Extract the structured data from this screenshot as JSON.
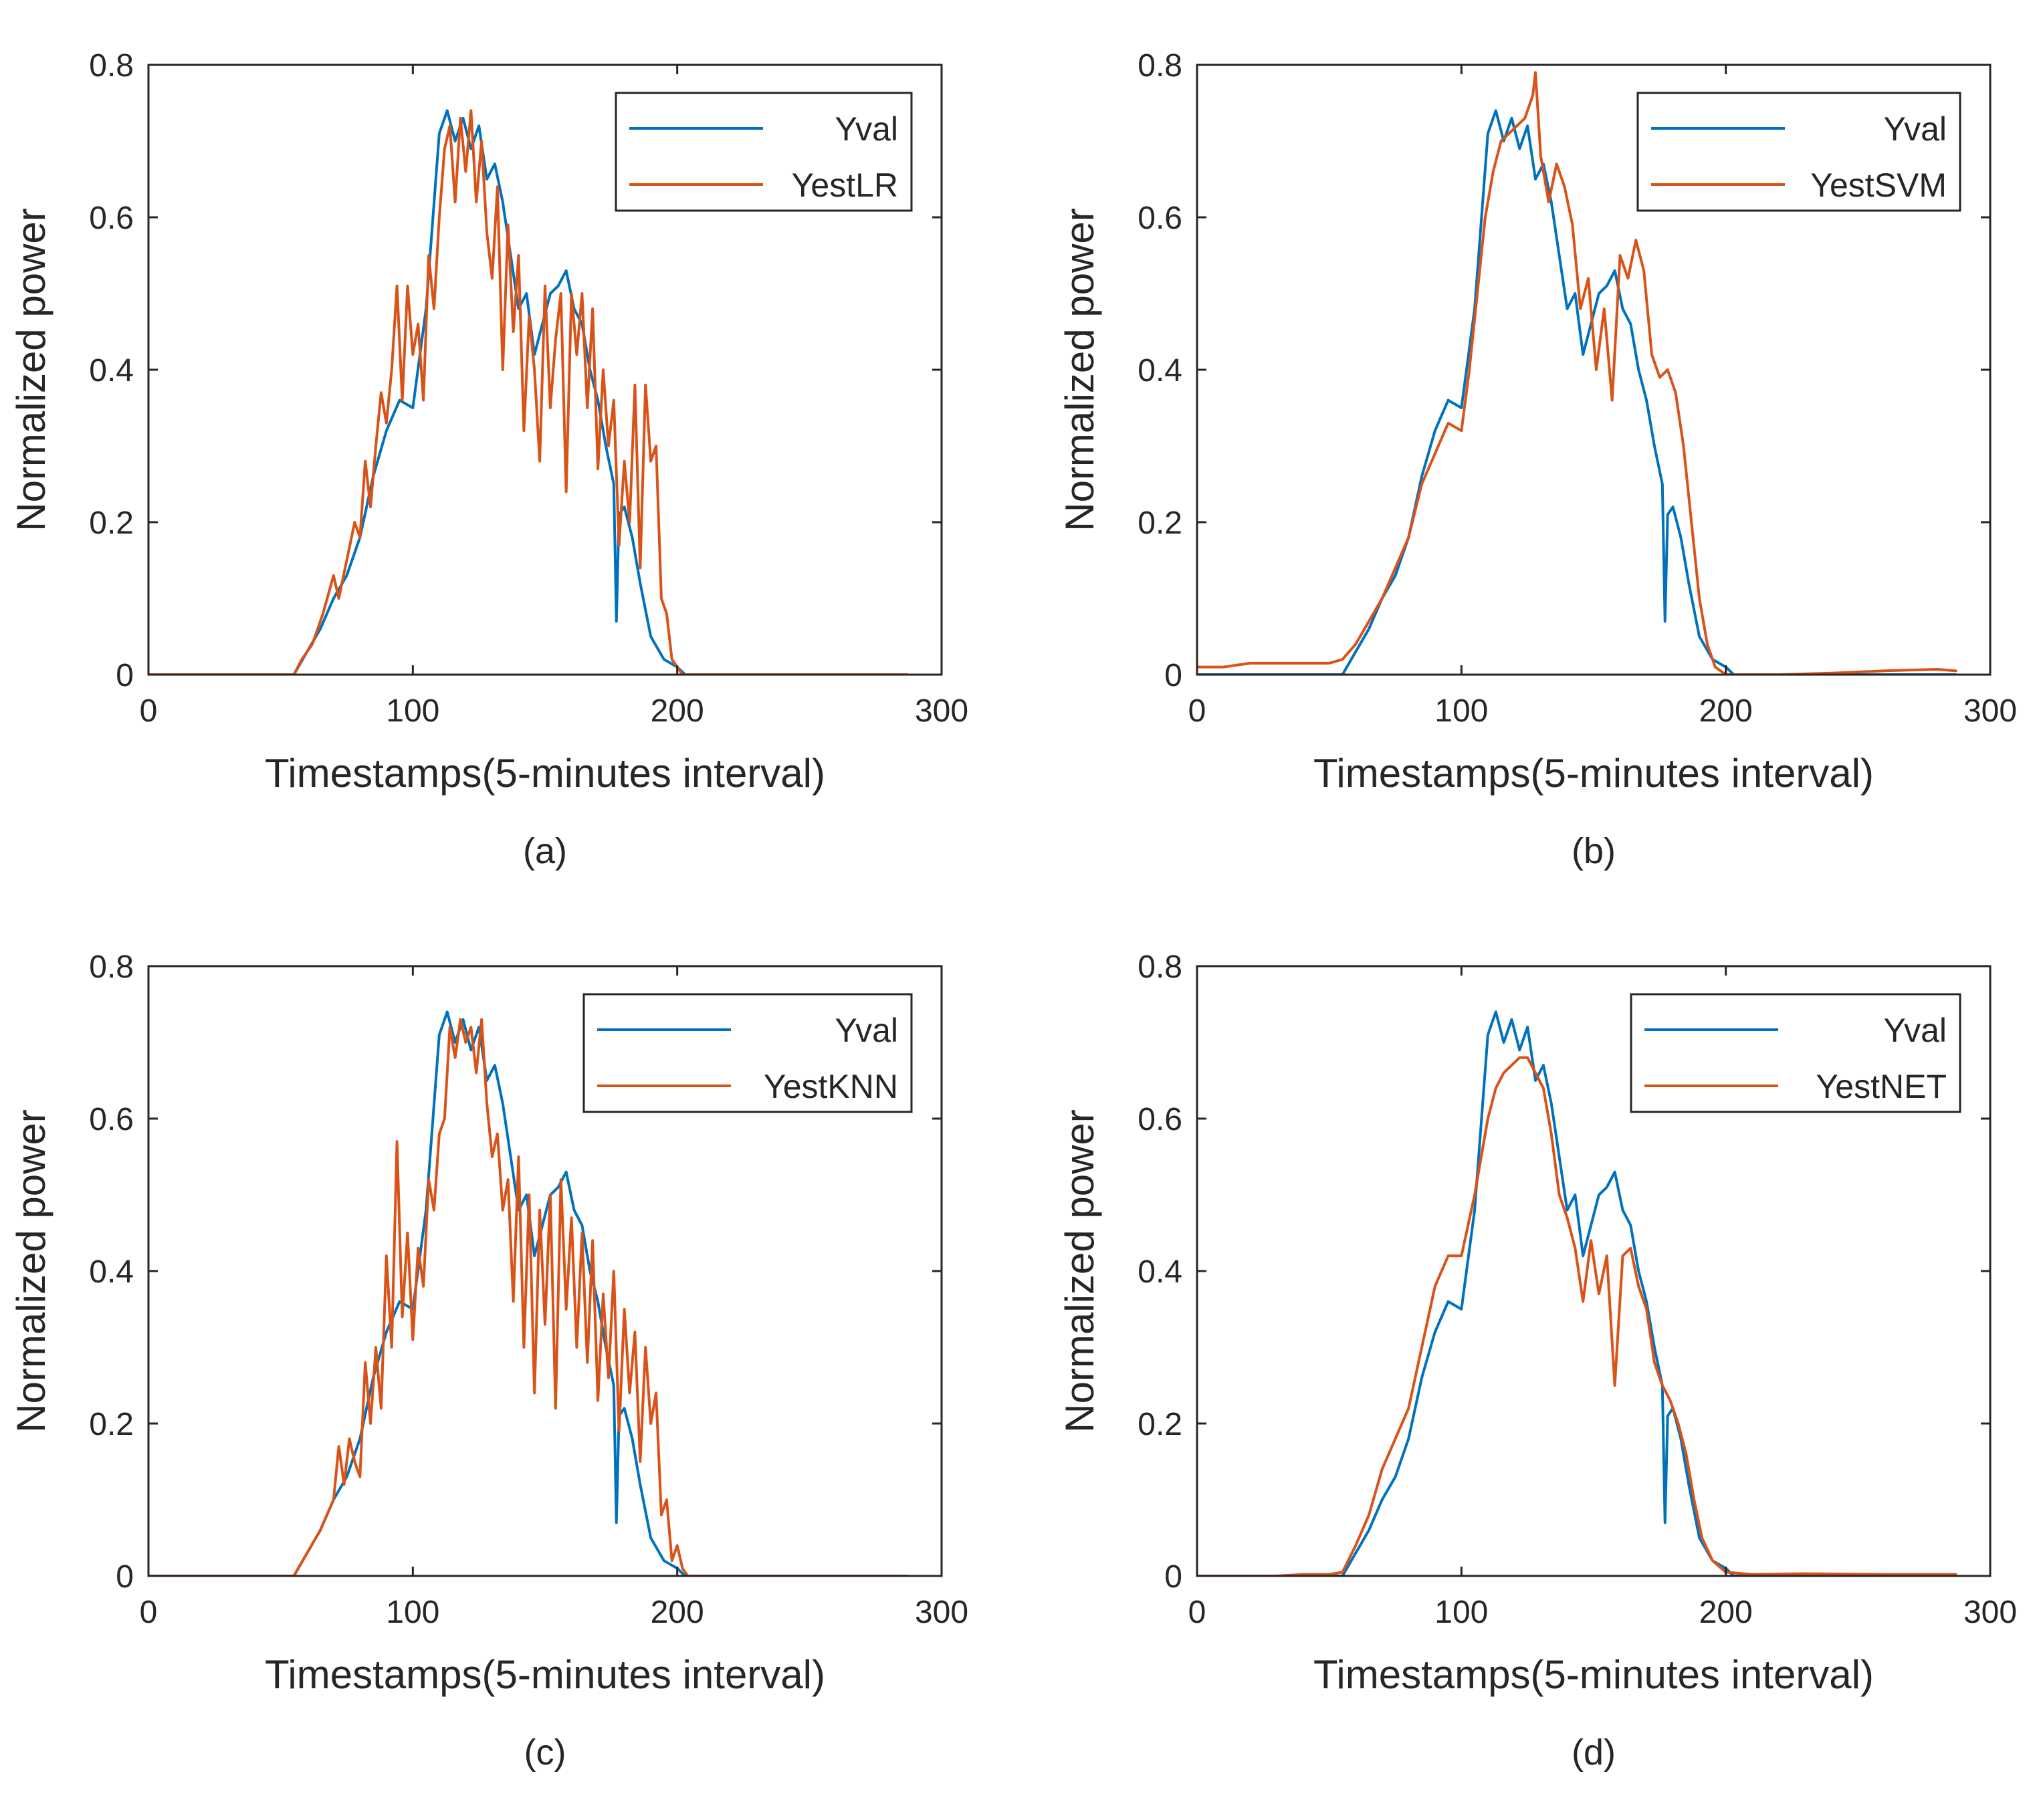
{
  "chart_data": [
    {
      "id": "a",
      "type": "line",
      "caption": "(a)",
      "xlabel": "Timestamps(5-minutes interval)",
      "ylabel": "Normalized power",
      "xlim": [
        0,
        300
      ],
      "ylim": [
        0,
        0.8
      ],
      "xticks": [
        0,
        100,
        200,
        300
      ],
      "yticks": [
        0,
        0.2,
        0.4,
        0.6,
        0.8
      ],
      "grid": false,
      "legend_position": "top-right",
      "series": [
        {
          "name": "Yval",
          "color": "#0072BD",
          "x": [
            0,
            55,
            60,
            65,
            70,
            75,
            80,
            85,
            90,
            95,
            100,
            105,
            110,
            113,
            116,
            119,
            122,
            125,
            128,
            131,
            134,
            137,
            140,
            143,
            146,
            149,
            152,
            155,
            158,
            161,
            164,
            167,
            170,
            173,
            176,
            177,
            178,
            180,
            183,
            186,
            190,
            195,
            200,
            203,
            287
          ],
          "y": [
            0,
            0,
            0.03,
            0.06,
            0.1,
            0.13,
            0.18,
            0.26,
            0.32,
            0.36,
            0.35,
            0.48,
            0.71,
            0.74,
            0.7,
            0.73,
            0.69,
            0.72,
            0.65,
            0.67,
            0.62,
            0.55,
            0.48,
            0.5,
            0.42,
            0.46,
            0.5,
            0.51,
            0.53,
            0.48,
            0.46,
            0.4,
            0.36,
            0.3,
            0.25,
            0.07,
            0.21,
            0.22,
            0.18,
            0.12,
            0.05,
            0.02,
            0.01,
            0,
            0
          ]
        },
        {
          "name": "YestLR",
          "color": "#D95319",
          "x": [
            0,
            55,
            58,
            62,
            66,
            70,
            72,
            75,
            78,
            80,
            82,
            84,
            86,
            88,
            90,
            92,
            94,
            96,
            98,
            100,
            102,
            104,
            106,
            108,
            110,
            112,
            114,
            116,
            118,
            120,
            122,
            124,
            126,
            128,
            130,
            132,
            134,
            136,
            138,
            140,
            142,
            144,
            146,
            148,
            150,
            152,
            154,
            156,
            158,
            160,
            162,
            164,
            166,
            168,
            170,
            172,
            174,
            176,
            178,
            180,
            182,
            184,
            186,
            188,
            190,
            192,
            194,
            196,
            198,
            200,
            202,
            204,
            287
          ],
          "y": [
            0,
            0,
            0.02,
            0.04,
            0.08,
            0.13,
            0.1,
            0.15,
            0.2,
            0.18,
            0.28,
            0.22,
            0.3,
            0.37,
            0.33,
            0.4,
            0.51,
            0.36,
            0.51,
            0.42,
            0.46,
            0.36,
            0.55,
            0.48,
            0.6,
            0.69,
            0.72,
            0.62,
            0.73,
            0.66,
            0.74,
            0.62,
            0.7,
            0.58,
            0.52,
            0.64,
            0.4,
            0.59,
            0.45,
            0.55,
            0.32,
            0.47,
            0.4,
            0.28,
            0.51,
            0.35,
            0.44,
            0.5,
            0.24,
            0.5,
            0.42,
            0.5,
            0.35,
            0.48,
            0.27,
            0.4,
            0.3,
            0.36,
            0.17,
            0.28,
            0.2,
            0.38,
            0.14,
            0.38,
            0.28,
            0.3,
            0.1,
            0.08,
            0.02,
            0.01,
            0,
            0,
            0
          ]
        }
      ]
    },
    {
      "id": "b",
      "type": "line",
      "caption": "(b)",
      "xlabel": "Timestamps(5-minutes interval)",
      "ylabel": "Normalized power",
      "xlim": [
        0,
        300
      ],
      "ylim": [
        0,
        0.8
      ],
      "xticks": [
        0,
        100,
        200,
        300
      ],
      "yticks": [
        0,
        0.2,
        0.4,
        0.6,
        0.8
      ],
      "grid": false,
      "legend_position": "top-right",
      "series": [
        {
          "name": "Yval",
          "color": "#0072BD",
          "x": [
            0,
            55,
            60,
            65,
            70,
            75,
            80,
            85,
            90,
            95,
            100,
            105,
            110,
            113,
            116,
            119,
            122,
            125,
            128,
            131,
            134,
            137,
            140,
            143,
            146,
            149,
            152,
            155,
            158,
            161,
            164,
            167,
            170,
            173,
            176,
            177,
            178,
            180,
            183,
            186,
            190,
            195,
            200,
            203,
            287
          ],
          "y": [
            0,
            0,
            0.03,
            0.06,
            0.1,
            0.13,
            0.18,
            0.26,
            0.32,
            0.36,
            0.35,
            0.48,
            0.71,
            0.74,
            0.7,
            0.73,
            0.69,
            0.72,
            0.65,
            0.67,
            0.62,
            0.55,
            0.48,
            0.5,
            0.42,
            0.46,
            0.5,
            0.51,
            0.53,
            0.48,
            0.46,
            0.4,
            0.36,
            0.3,
            0.25,
            0.07,
            0.21,
            0.22,
            0.18,
            0.12,
            0.05,
            0.02,
            0.01,
            0,
            0
          ]
        },
        {
          "name": "YestSVM",
          "color": "#D95319",
          "x": [
            0,
            5,
            10,
            20,
            30,
            40,
            50,
            55,
            60,
            65,
            70,
            75,
            80,
            85,
            90,
            95,
            100,
            103,
            106,
            109,
            112,
            115,
            118,
            121,
            124,
            127,
            128,
            130,
            133,
            136,
            139,
            142,
            145,
            148,
            151,
            154,
            157,
            160,
            163,
            166,
            169,
            172,
            175,
            178,
            181,
            184,
            187,
            190,
            193,
            196,
            200,
            220,
            240,
            260,
            280,
            287
          ],
          "y": [
            0.01,
            0.01,
            0.01,
            0.015,
            0.015,
            0.015,
            0.015,
            0.02,
            0.04,
            0.07,
            0.1,
            0.14,
            0.18,
            0.25,
            0.29,
            0.33,
            0.32,
            0.4,
            0.5,
            0.6,
            0.66,
            0.7,
            0.71,
            0.72,
            0.73,
            0.76,
            0.79,
            0.68,
            0.62,
            0.67,
            0.64,
            0.59,
            0.48,
            0.52,
            0.4,
            0.48,
            0.36,
            0.55,
            0.52,
            0.57,
            0.53,
            0.42,
            0.39,
            0.4,
            0.37,
            0.3,
            0.2,
            0.1,
            0.04,
            0.01,
            0,
            0,
            0.002,
            0.005,
            0.007,
            0.005
          ]
        }
      ]
    },
    {
      "id": "c",
      "type": "line",
      "caption": "(c)",
      "xlabel": "Timestamps(5-minutes interval)",
      "ylabel": "Normalized power",
      "xlim": [
        0,
        300
      ],
      "ylim": [
        0,
        0.8
      ],
      "xticks": [
        0,
        100,
        200,
        300
      ],
      "yticks": [
        0,
        0.2,
        0.4,
        0.6,
        0.8
      ],
      "grid": false,
      "legend_position": "top-right",
      "series": [
        {
          "name": "Yval",
          "color": "#0072BD",
          "x": [
            0,
            55,
            60,
            65,
            70,
            75,
            80,
            85,
            90,
            95,
            100,
            105,
            110,
            113,
            116,
            119,
            122,
            125,
            128,
            131,
            134,
            137,
            140,
            143,
            146,
            149,
            152,
            155,
            158,
            161,
            164,
            167,
            170,
            173,
            176,
            177,
            178,
            180,
            183,
            186,
            190,
            195,
            200,
            203,
            287
          ],
          "y": [
            0,
            0,
            0.03,
            0.06,
            0.1,
            0.13,
            0.18,
            0.26,
            0.32,
            0.36,
            0.35,
            0.48,
            0.71,
            0.74,
            0.7,
            0.73,
            0.69,
            0.72,
            0.65,
            0.67,
            0.62,
            0.55,
            0.48,
            0.5,
            0.42,
            0.46,
            0.5,
            0.51,
            0.53,
            0.48,
            0.46,
            0.4,
            0.36,
            0.3,
            0.25,
            0.07,
            0.21,
            0.22,
            0.18,
            0.12,
            0.05,
            0.02,
            0.01,
            0,
            0
          ]
        },
        {
          "name": "YestKNN",
          "color": "#D95319",
          "x": [
            0,
            55,
            60,
            65,
            70,
            72,
            74,
            76,
            78,
            80,
            82,
            84,
            86,
            88,
            90,
            92,
            94,
            96,
            98,
            100,
            102,
            104,
            106,
            108,
            110,
            112,
            114,
            116,
            118,
            120,
            122,
            124,
            126,
            128,
            130,
            132,
            134,
            136,
            138,
            140,
            142,
            144,
            146,
            148,
            150,
            152,
            154,
            156,
            158,
            160,
            162,
            164,
            166,
            168,
            170,
            172,
            174,
            176,
            178,
            180,
            182,
            184,
            186,
            188,
            190,
            192,
            194,
            196,
            198,
            200,
            202,
            204,
            287
          ],
          "y": [
            0,
            0,
            0.03,
            0.06,
            0.1,
            0.17,
            0.12,
            0.18,
            0.15,
            0.13,
            0.28,
            0.2,
            0.3,
            0.22,
            0.42,
            0.3,
            0.57,
            0.34,
            0.45,
            0.31,
            0.43,
            0.38,
            0.52,
            0.48,
            0.58,
            0.6,
            0.72,
            0.68,
            0.73,
            0.7,
            0.72,
            0.66,
            0.73,
            0.62,
            0.55,
            0.58,
            0.48,
            0.52,
            0.36,
            0.55,
            0.3,
            0.5,
            0.24,
            0.48,
            0.33,
            0.5,
            0.22,
            0.52,
            0.35,
            0.47,
            0.3,
            0.45,
            0.28,
            0.44,
            0.23,
            0.37,
            0.26,
            0.4,
            0.19,
            0.35,
            0.24,
            0.32,
            0.15,
            0.3,
            0.2,
            0.24,
            0.08,
            0.1,
            0.02,
            0.04,
            0.01,
            0,
            0
          ]
        }
      ]
    },
    {
      "id": "d",
      "type": "line",
      "caption": "(d)",
      "xlabel": "Timestamps(5-minutes interval)",
      "ylabel": "Normalized power",
      "xlim": [
        0,
        300
      ],
      "ylim": [
        0,
        0.8
      ],
      "xticks": [
        0,
        100,
        200,
        300
      ],
      "yticks": [
        0,
        0.2,
        0.4,
        0.6,
        0.8
      ],
      "grid": false,
      "legend_position": "top-right",
      "series": [
        {
          "name": "Yval",
          "color": "#0072BD",
          "x": [
            0,
            55,
            60,
            65,
            70,
            75,
            80,
            85,
            90,
            95,
            100,
            105,
            110,
            113,
            116,
            119,
            122,
            125,
            128,
            131,
            134,
            137,
            140,
            143,
            146,
            149,
            152,
            155,
            158,
            161,
            164,
            167,
            170,
            173,
            176,
            177,
            178,
            180,
            183,
            186,
            190,
            195,
            200,
            203,
            287
          ],
          "y": [
            0,
            0,
            0.03,
            0.06,
            0.1,
            0.13,
            0.18,
            0.26,
            0.32,
            0.36,
            0.35,
            0.48,
            0.71,
            0.74,
            0.7,
            0.73,
            0.69,
            0.72,
            0.65,
            0.67,
            0.62,
            0.55,
            0.48,
            0.5,
            0.42,
            0.46,
            0.5,
            0.51,
            0.53,
            0.48,
            0.46,
            0.4,
            0.36,
            0.3,
            0.25,
            0.07,
            0.21,
            0.22,
            0.18,
            0.12,
            0.05,
            0.02,
            0.01,
            0,
            0
          ]
        },
        {
          "name": "YestNET",
          "color": "#D95319",
          "x": [
            0,
            30,
            40,
            50,
            55,
            60,
            65,
            70,
            75,
            80,
            85,
            90,
            95,
            100,
            105,
            110,
            113,
            116,
            119,
            122,
            125,
            128,
            131,
            134,
            137,
            140,
            143,
            146,
            149,
            152,
            155,
            158,
            161,
            164,
            167,
            170,
            173,
            176,
            179,
            182,
            185,
            188,
            191,
            195,
            200,
            210,
            230,
            260,
            287
          ],
          "y": [
            0,
            0,
            0.002,
            0.002,
            0.005,
            0.04,
            0.08,
            0.14,
            0.18,
            0.22,
            0.3,
            0.38,
            0.42,
            0.42,
            0.5,
            0.6,
            0.64,
            0.66,
            0.67,
            0.68,
            0.68,
            0.66,
            0.64,
            0.58,
            0.5,
            0.47,
            0.43,
            0.36,
            0.44,
            0.37,
            0.42,
            0.25,
            0.42,
            0.43,
            0.38,
            0.35,
            0.28,
            0.25,
            0.23,
            0.2,
            0.16,
            0.1,
            0.05,
            0.02,
            0.005,
            0.002,
            0.003,
            0.002,
            0.002
          ]
        }
      ]
    }
  ]
}
